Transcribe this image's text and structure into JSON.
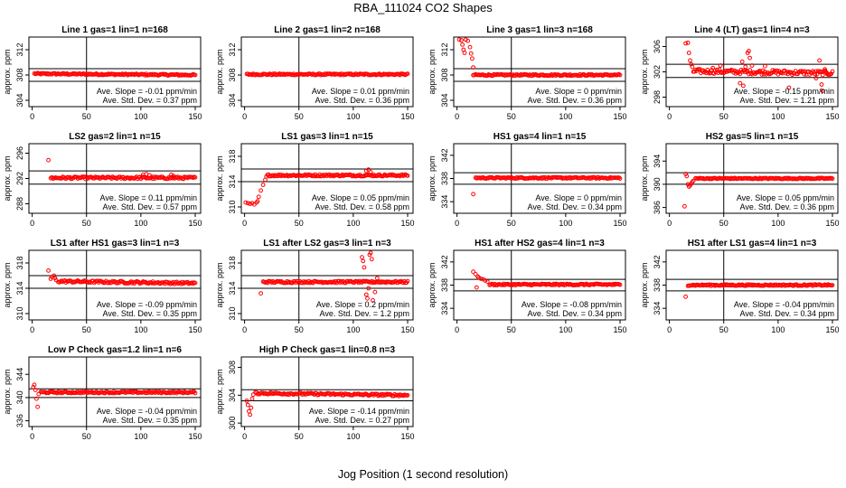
{
  "page": {
    "title": "RBA_111024  CO2 Shapes",
    "xlabel": "Jog Position (1 second resolution)"
  },
  "chart_data": [
    {
      "type": "scatter",
      "title": "Line 1 gas=1 lin=1 n=168",
      "ylabel": "approx. ppm",
      "xlim": [
        -3,
        155
      ],
      "ylim": [
        303,
        314
      ],
      "yticks": [
        304,
        308,
        312
      ],
      "xticks": [
        0,
        50,
        100,
        150
      ],
      "vline": 50,
      "hlines": [
        309,
        307
      ],
      "xstart": 2,
      "xend": 150,
      "base": 308.2,
      "noise": 0.12,
      "slope": -0.2,
      "early": [],
      "outliers": [],
      "ann_slope": "Ave. Slope = -0.01 ppm/min",
      "ann_sd": "Ave. Std. Dev. = 0.37 ppm"
    },
    {
      "type": "scatter",
      "title": "Line 2 gas=1 lin=2 n=168",
      "ylabel": "approx. ppm",
      "xlim": [
        -3,
        155
      ],
      "ylim": [
        303,
        314
      ],
      "yticks": [
        304,
        308,
        312
      ],
      "xticks": [
        0,
        50,
        100,
        150
      ],
      "vline": 50,
      "hlines": [],
      "xstart": 2,
      "xend": 150,
      "base": 308.1,
      "noise": 0.12,
      "slope": 0.0,
      "early": [],
      "outliers": [],
      "ann_slope": "Ave. Slope = 0.01 ppm/min",
      "ann_sd": "Ave. Std. Dev. = 0.36 ppm"
    },
    {
      "type": "scatter",
      "title": "Line 3 gas=1 lin=3 n=168",
      "ylabel": "approx. ppm",
      "xlim": [
        -3,
        155
      ],
      "ylim": [
        303,
        314
      ],
      "yticks": [
        304,
        308,
        312
      ],
      "xticks": [
        0,
        50,
        100,
        150
      ],
      "vline": 50,
      "hlines": [
        309,
        307
      ],
      "xstart": 15,
      "xend": 150,
      "base": 308.0,
      "noise": 0.12,
      "slope": 0.0,
      "early": [
        [
          2,
          313.6
        ],
        [
          4,
          313.5
        ],
        [
          5,
          312.8
        ],
        [
          6,
          312.0
        ],
        [
          7,
          311.5
        ],
        [
          8,
          313.6
        ],
        [
          10,
          313.4
        ],
        [
          12,
          312.4
        ],
        [
          13,
          311.4
        ],
        [
          14,
          310.6
        ],
        [
          15,
          309.2
        ]
      ],
      "outliers": [],
      "ann_slope": "Ave. Slope = 0 ppm/min",
      "ann_sd": "Ave. Std. Dev. = 0.36 ppm"
    },
    {
      "type": "scatter",
      "title": "Line 4 (LT) gas=1 lin=4 n=3",
      "ylabel": "approx. ppm",
      "xlim": [
        -3,
        155
      ],
      "ylim": [
        296.5,
        307.5
      ],
      "yticks": [
        298,
        302,
        306
      ],
      "xticks": [
        0,
        50,
        100,
        150
      ],
      "vline": 50,
      "hlines": [
        303.2,
        301.1
      ],
      "xstart": 22,
      "xend": 150,
      "base": 302.1,
      "noise": 0.35,
      "slope": -0.3,
      "early": [
        [
          15,
          306.5
        ],
        [
          17,
          306.6
        ],
        [
          18,
          305.0
        ],
        [
          19,
          303.8
        ],
        [
          20,
          303.2
        ],
        [
          21,
          302.8
        ]
      ],
      "outliers": [
        [
          40,
          302.6
        ],
        [
          47,
          303.0
        ],
        [
          65,
          300.2
        ],
        [
          67,
          303.6
        ],
        [
          68,
          299.8
        ],
        [
          70,
          302.8
        ],
        [
          72,
          305.0
        ],
        [
          73,
          305.3
        ],
        [
          74,
          304.2
        ],
        [
          76,
          303.0
        ],
        [
          88,
          302.9
        ],
        [
          110,
          299.5
        ],
        [
          135,
          301.0
        ],
        [
          138,
          303.8
        ],
        [
          140,
          300.0
        ],
        [
          141,
          299.0
        ],
        [
          143,
          302.4
        ],
        [
          145,
          301.8
        ]
      ],
      "ann_slope": "Ave. Slope = -0.15 ppm/min",
      "ann_sd": "Ave. Std. Dev. = 1.21 ppm"
    },
    {
      "type": "scatter",
      "title": "LS2 gas=2 lin=1 n=15",
      "ylabel": "approx. ppm",
      "xlim": [
        -3,
        155
      ],
      "ylim": [
        286.5,
        297.5
      ],
      "yticks": [
        288,
        292,
        296
      ],
      "xticks": [
        0,
        50,
        100,
        150
      ],
      "vline": 50,
      "hlines": [
        293.2,
        291.1
      ],
      "xstart": 17,
      "xend": 150,
      "base": 292.1,
      "noise": 0.18,
      "slope": 0.0,
      "early": [
        [
          15,
          294.9
        ]
      ],
      "outliers": [
        [
          102,
          292.6
        ],
        [
          105,
          292.7
        ],
        [
          108,
          292.5
        ],
        [
          128,
          292.6
        ],
        [
          130,
          292.4
        ]
      ],
      "ann_slope": "Ave. Slope = 0.11 ppm/min",
      "ann_sd": "Ave. Std. Dev. = 0.57 ppm"
    },
    {
      "type": "scatter",
      "title": "LS1 gas=3 lin=1 n=15",
      "ylabel": "approx. ppm",
      "xlim": [
        -3,
        155
      ],
      "ylim": [
        309,
        320
      ],
      "yticks": [
        310,
        314,
        318
      ],
      "xticks": [
        0,
        50,
        100,
        150
      ],
      "vline": 50,
      "hlines": [
        316,
        314
      ],
      "xstart": 21,
      "xend": 150,
      "base": 315.0,
      "noise": 0.15,
      "slope": 0.0,
      "early": [
        [
          1,
          310.7
        ],
        [
          3,
          310.6
        ],
        [
          5,
          310.5
        ],
        [
          7,
          310.6
        ],
        [
          9,
          310.4
        ],
        [
          11,
          310.7
        ],
        [
          12,
          310.9
        ],
        [
          13,
          311.6
        ],
        [
          15,
          312.6
        ],
        [
          17,
          313.5
        ],
        [
          19,
          314.3
        ],
        [
          20,
          314.8
        ]
      ],
      "outliers": [
        [
          112,
          315.7
        ],
        [
          114,
          315.9
        ],
        [
          116,
          315.5
        ]
      ],
      "ann_slope": "Ave. Slope = 0.05 ppm/min",
      "ann_sd": "Ave. Std. Dev. = 0.58 ppm"
    },
    {
      "type": "scatter",
      "title": "HS1 gas=4 lin=1 n=15",
      "ylabel": "approx. ppm",
      "xlim": [
        -3,
        155
      ],
      "ylim": [
        332,
        344
      ],
      "yticks": [
        334,
        338,
        342
      ],
      "xticks": [
        0,
        50,
        100,
        150
      ],
      "vline": 50,
      "hlines": [
        339,
        337
      ],
      "xstart": 17,
      "xend": 150,
      "base": 338.1,
      "noise": 0.12,
      "slope": 0.0,
      "early": [
        [
          15,
          335.3
        ]
      ],
      "outliers": [],
      "ann_slope": "Ave. Slope = 0 ppm/min",
      "ann_sd": "Ave. Std. Dev. = 0.34 ppm"
    },
    {
      "type": "scatter",
      "title": "HS2 gas=5 lin=1 n=15",
      "ylabel": "approx. ppm",
      "xlim": [
        -3,
        155
      ],
      "ylim": [
        385,
        397
      ],
      "yticks": [
        386,
        390,
        394
      ],
      "xticks": [
        0,
        50,
        100,
        150
      ],
      "vline": 50,
      "hlines": [
        392,
        390
      ],
      "xstart": 24,
      "xend": 150,
      "base": 391.0,
      "noise": 0.1,
      "slope": 0.0,
      "early": [
        [
          15,
          391.8
        ],
        [
          16,
          391.4
        ],
        [
          17,
          390.0
        ],
        [
          18,
          389.6
        ],
        [
          19,
          389.8
        ],
        [
          20,
          390.1
        ],
        [
          21,
          390.4
        ],
        [
          22,
          390.6
        ],
        [
          14,
          386.2
        ]
      ],
      "outliers": [],
      "ann_slope": "Ave. Slope = 0.05 ppm/min",
      "ann_sd": "Ave. Std. Dev. = 0.36 ppm"
    },
    {
      "type": "scatter",
      "title": "LS1 after HS1 gas=3 lin=1 n=3",
      "ylabel": "approx. ppm",
      "xlim": [
        -3,
        155
      ],
      "ylim": [
        309,
        320
      ],
      "yticks": [
        310,
        314,
        318
      ],
      "xticks": [
        0,
        50,
        100,
        150
      ],
      "vline": 50,
      "hlines": [
        316,
        314
      ],
      "xstart": 24,
      "xend": 150,
      "base": 315.1,
      "noise": 0.18,
      "slope": -0.3,
      "early": [
        [
          15,
          316.8
        ],
        [
          17,
          315.5
        ],
        [
          18,
          315.8
        ],
        [
          20,
          316.0
        ],
        [
          21,
          315.6
        ],
        [
          22,
          315.3
        ]
      ],
      "outliers": [],
      "ann_slope": "Ave. Slope = -0.09 ppm/min",
      "ann_sd": "Ave. Std. Dev. = 0.35 ppm"
    },
    {
      "type": "scatter",
      "title": "LS1 after LS2 gas=3 lin=1 n=3",
      "ylabel": "approx. ppm",
      "xlim": [
        -3,
        155
      ],
      "ylim": [
        309,
        320
      ],
      "yticks": [
        310,
        314,
        318
      ],
      "xticks": [
        0,
        50,
        100,
        150
      ],
      "vline": 50,
      "hlines": [
        316,
        314
      ],
      "xstart": 17,
      "xend": 150,
      "base": 315.0,
      "noise": 0.15,
      "slope": 0.0,
      "early": [
        [
          15,
          313.2
        ]
      ],
      "outliers": [
        [
          108,
          318.9
        ],
        [
          109,
          318.3
        ],
        [
          110,
          317.3
        ],
        [
          112,
          313.0
        ],
        [
          113,
          312.4
        ],
        [
          114,
          314.0
        ],
        [
          115,
          319.3
        ],
        [
          116,
          319.6
        ],
        [
          117,
          318.6
        ],
        [
          118,
          312.1
        ],
        [
          120,
          313.4
        ],
        [
          122,
          315.6
        ]
      ],
      "ann_slope": "Ave. Slope = 0.2 ppm/min",
      "ann_sd": "Ave. Std. Dev. = 1.2 ppm"
    },
    {
      "type": "scatter",
      "title": "HS1 after HS2 gas=4 lin=1 n=3",
      "ylabel": "approx. ppm",
      "xlim": [
        -3,
        155
      ],
      "ylim": [
        332,
        344
      ],
      "yticks": [
        334,
        338,
        342
      ],
      "xticks": [
        0,
        50,
        100,
        150
      ],
      "vline": 50,
      "hlines": [
        339,
        337
      ],
      "xstart": 30,
      "xend": 150,
      "base": 338.1,
      "noise": 0.13,
      "slope": 0.0,
      "early": [
        [
          15,
          340.3
        ],
        [
          17,
          339.9
        ],
        [
          18,
          337.6
        ],
        [
          19,
          339.5
        ],
        [
          20,
          339.3
        ],
        [
          22,
          339.1
        ],
        [
          24,
          339.0
        ],
        [
          26,
          338.8
        ],
        [
          28,
          338.6
        ]
      ],
      "outliers": [],
      "ann_slope": "Ave. Slope = -0.08 ppm/min",
      "ann_sd": "Ave. Std. Dev. = 0.34 ppm"
    },
    {
      "type": "scatter",
      "title": "HS1 after LS1 gas=4 lin=1 n=3",
      "ylabel": "approx. ppm",
      "xlim": [
        -3,
        155
      ],
      "ylim": [
        332,
        344
      ],
      "yticks": [
        334,
        338,
        342
      ],
      "xticks": [
        0,
        50,
        100,
        150
      ],
      "vline": 50,
      "hlines": [
        339,
        337
      ],
      "xstart": 17,
      "xend": 150,
      "base": 338.0,
      "noise": 0.12,
      "slope": 0.0,
      "early": [
        [
          15,
          336.0
        ]
      ],
      "outliers": [],
      "ann_slope": "Ave. Slope = -0.04 ppm/min",
      "ann_sd": "Ave. Std. Dev. = 0.34 ppm"
    },
    {
      "type": "scatter",
      "title": "Low P Check gas=1.2 lin=1 n=6",
      "ylabel": "approx. ppm",
      "xlim": [
        -3,
        155
      ],
      "ylim": [
        335,
        347
      ],
      "yticks": [
        336,
        340,
        344
      ],
      "xticks": [
        0,
        50,
        100,
        150
      ],
      "vline": 50,
      "hlines": [
        341.5,
        340
      ],
      "xstart": 8,
      "xend": 150,
      "base": 340.9,
      "noise": 0.15,
      "slope": 0.0,
      "early": [
        [
          1,
          341.8
        ],
        [
          2,
          342.2
        ],
        [
          3,
          341.3
        ],
        [
          4,
          339.8
        ],
        [
          5,
          338.4
        ],
        [
          6,
          340.6
        ]
      ],
      "outliers": [],
      "ann_slope": "Ave. Slope = -0.04 ppm/min",
      "ann_sd": "Ave. Std. Dev. = 0.35 ppm"
    },
    {
      "type": "scatter",
      "title": "High P Check gas=1 lin=0.8 n=3",
      "ylabel": "approx. ppm",
      "xlim": [
        -3,
        155
      ],
      "ylim": [
        299.5,
        309.5
      ],
      "yticks": [
        300,
        304,
        308
      ],
      "xticks": [
        0,
        50,
        100,
        150
      ],
      "vline": 50,
      "hlines": [
        304.8,
        303.2
      ],
      "xstart": 10,
      "xend": 150,
      "base": 304.3,
      "noise": 0.15,
      "slope": -0.3,
      "early": [
        [
          2,
          303.2
        ],
        [
          3,
          302.6
        ],
        [
          4,
          301.7
        ],
        [
          5,
          301.2
        ],
        [
          6,
          302.2
        ],
        [
          7,
          303.5
        ],
        [
          8,
          304.1
        ]
      ],
      "outliers": [],
      "ann_slope": "Ave. Slope = -0.14 ppm/min",
      "ann_sd": "Ave. Std. Dev. = 0.27 ppm"
    }
  ]
}
